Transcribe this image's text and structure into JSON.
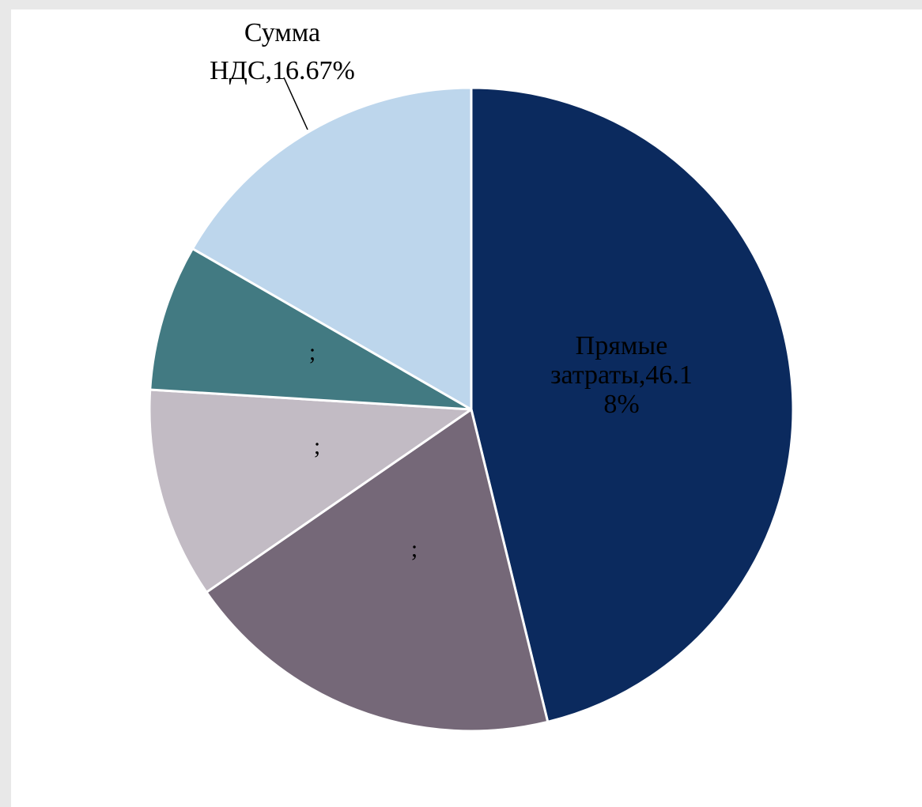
{
  "chart_data": {
    "type": "pie",
    "title": "",
    "start_angle_deg": 0,
    "direction": "clockwise",
    "slices": [
      {
        "label": "Прямые затраты",
        "value": 46.18,
        "label_lines": [
          "Прямые",
          "затраты,46.1",
          "8%"
        ],
        "color": "#0b2a5e"
      },
      {
        "label": "",
        "value": 19.2,
        "label_lines": [
          ";"
        ],
        "color": "#756878"
      },
      {
        "label": "",
        "value": 10.6,
        "label_lines": [
          ";"
        ],
        "color": "#c2bbc4"
      },
      {
        "label": "",
        "value": 7.35,
        "label_lines": [
          ";"
        ],
        "color": "#427a82"
      },
      {
        "label": "Сумма НДС",
        "value": 16.67,
        "label_lines": [
          "Сумма",
          "НДС,16.67%"
        ],
        "color": "#bdd6ec"
      }
    ]
  }
}
